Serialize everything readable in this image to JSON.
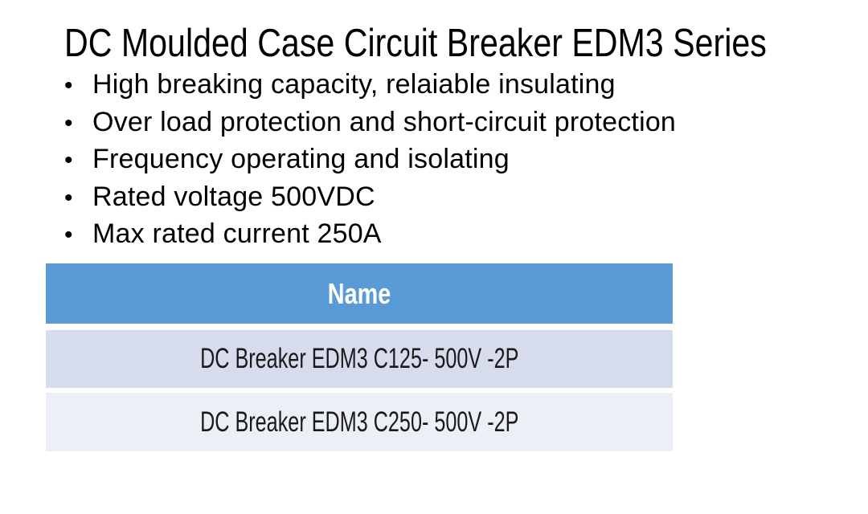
{
  "page": {
    "title": "DC Moulded Case Circuit Breaker EDM3 Series",
    "bullet_glyph": "•",
    "bullets": [
      "High breaking capacity, relaiable insulating",
      "Over load protection and short-circuit protection",
      "Frequency operating and isolating",
      "Rated voltage 500VDC",
      "Max rated current 250A"
    ]
  },
  "table": {
    "header": "Name",
    "rows": [
      "DC Breaker EDM3 C125- 500V -2P",
      "DC Breaker EDM3 C250- 500V -2P"
    ],
    "colors": {
      "header_bg": "#5B9BD5",
      "header_text": "#FFFFFF",
      "row_odd_bg": "#D6DCEC",
      "row_even_bg": "#EDEFF7",
      "row_text": "#1A1A1A",
      "title_text": "#000000"
    }
  }
}
